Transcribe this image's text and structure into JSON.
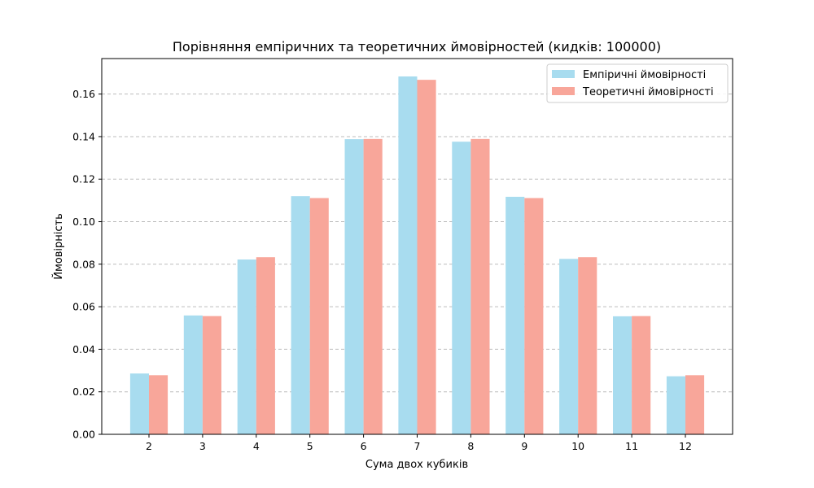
{
  "chart_data": {
    "type": "bar",
    "title": "Порівняння емпіричних та теоретичних ймовірностей (кидків: 100000)",
    "xlabel": "Сума двох кубиків",
    "ylabel": "Ймовірність",
    "categories": [
      "2",
      "3",
      "4",
      "5",
      "6",
      "7",
      "8",
      "9",
      "10",
      "11",
      "12"
    ],
    "series": [
      {
        "name": "Емпіричні ймовірності",
        "color": "#a8dcef",
        "values": [
          0.0286,
          0.0559,
          0.0822,
          0.112,
          0.1388,
          0.1683,
          0.1376,
          0.1117,
          0.0825,
          0.0555,
          0.0273
        ]
      },
      {
        "name": "Теоретичні ймовірності",
        "color": "#f8a69a",
        "values": [
          0.0278,
          0.0556,
          0.0833,
          0.1111,
          0.1389,
          0.1667,
          0.1389,
          0.1111,
          0.0833,
          0.0556,
          0.0278
        ]
      }
    ],
    "ylim": [
      0,
      0.1767
    ],
    "yticks": [
      "0.00",
      "0.02",
      "0.04",
      "0.06",
      "0.08",
      "0.10",
      "0.12",
      "0.14",
      "0.16"
    ],
    "ytick_values": [
      0,
      0.02,
      0.04,
      0.06,
      0.08,
      0.1,
      0.12,
      0.14,
      0.16
    ],
    "grid": "y dashed",
    "legend_position": "top-right"
  }
}
